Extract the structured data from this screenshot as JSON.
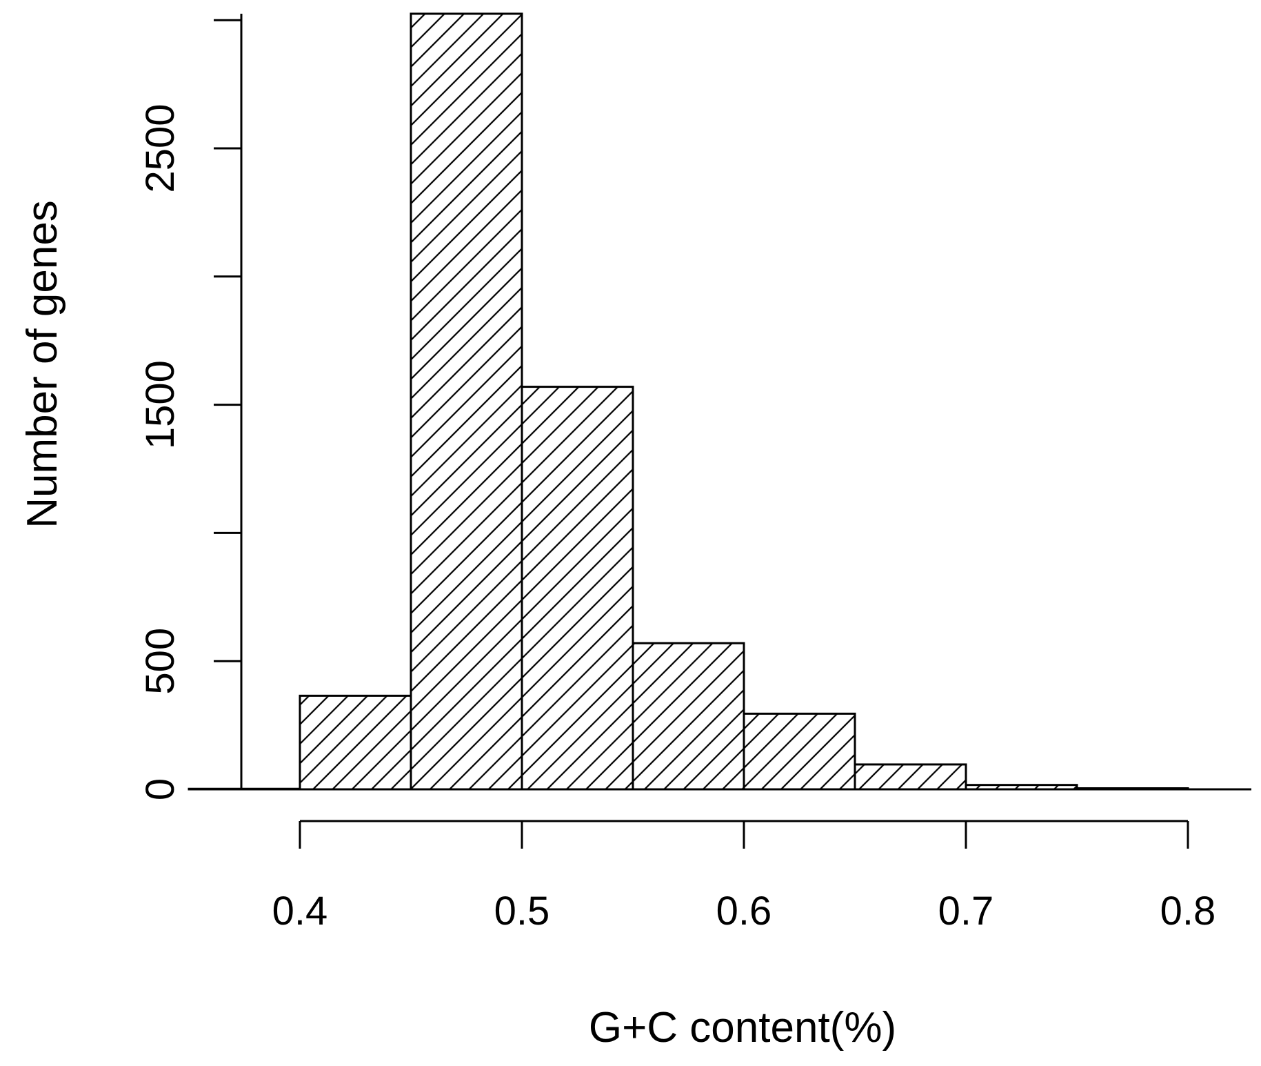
{
  "chart_data": {
    "type": "bar",
    "subtype": "histogram",
    "xlabel": "G+C content(%)",
    "ylabel": "Number of genes",
    "bins": [
      {
        "start": 0.35,
        "end": 0.4,
        "count": 2
      },
      {
        "start": 0.4,
        "end": 0.45,
        "count": 365
      },
      {
        "start": 0.45,
        "end": 0.5,
        "count": 3025
      },
      {
        "start": 0.5,
        "end": 0.55,
        "count": 1570
      },
      {
        "start": 0.55,
        "end": 0.6,
        "count": 570
      },
      {
        "start": 0.6,
        "end": 0.65,
        "count": 295
      },
      {
        "start": 0.65,
        "end": 0.7,
        "count": 97
      },
      {
        "start": 0.7,
        "end": 0.75,
        "count": 17
      },
      {
        "start": 0.75,
        "end": 0.8,
        "count": 4
      }
    ],
    "x_ticks": [
      {
        "value": 0.4,
        "label": "0.4"
      },
      {
        "value": 0.5,
        "label": "0.5"
      },
      {
        "value": 0.6,
        "label": "0.6"
      },
      {
        "value": 0.7,
        "label": "0.7"
      },
      {
        "value": 0.8,
        "label": "0.8"
      }
    ],
    "y_ticks": [
      0,
      500,
      1000,
      1500,
      2000,
      2500,
      3000
    ],
    "y_tick_labels": [
      {
        "value": 0,
        "label": "0"
      },
      {
        "value": 500,
        "label": "500"
      },
      {
        "value": 1500,
        "label": "1500"
      },
      {
        "value": 2500,
        "label": "2500"
      }
    ],
    "xlim": [
      0.37,
      0.83
    ],
    "ylim": [
      0,
      3025
    ],
    "fill": "diagonal-hatch",
    "grid": false,
    "legend": "none"
  }
}
